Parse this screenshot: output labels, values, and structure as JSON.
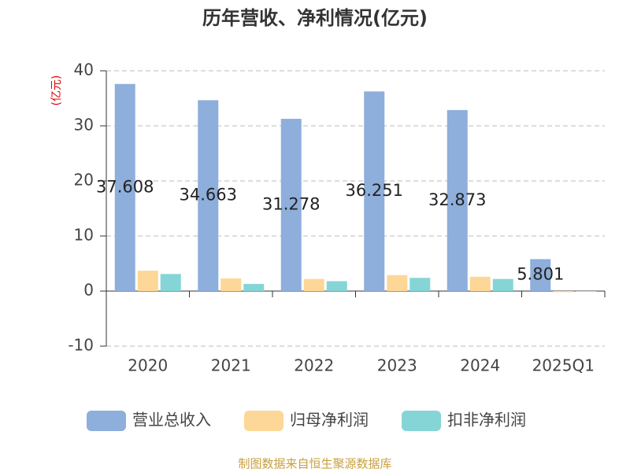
{
  "chart_data": {
    "type": "bar",
    "title": "历年营收、净利情况(亿元)",
    "y_label": "(亿元)",
    "source": "制图数据来自恒生聚源数据库",
    "categories": [
      "2020",
      "2021",
      "2022",
      "2023",
      "2024",
      "2025Q1"
    ],
    "series": [
      {
        "name": "营业总收入",
        "color": "#8eaedb",
        "show_labels": true,
        "values": [
          37.608,
          34.663,
          31.278,
          36.251,
          32.873,
          5.801
        ]
      },
      {
        "name": "归母净利润",
        "color": "#fdd797",
        "show_labels": false,
        "values": [
          3.7,
          2.3,
          2.2,
          2.9,
          2.6,
          -0.2
        ]
      },
      {
        "name": "扣非净利润",
        "color": "#86d5d6",
        "show_labels": false,
        "values": [
          3.1,
          1.3,
          1.8,
          2.4,
          2.2,
          -0.1
        ]
      }
    ],
    "ylim": [
      -10,
      40
    ],
    "yticks": [
      -10,
      0,
      10,
      20,
      30,
      40
    ],
    "grid": true
  }
}
